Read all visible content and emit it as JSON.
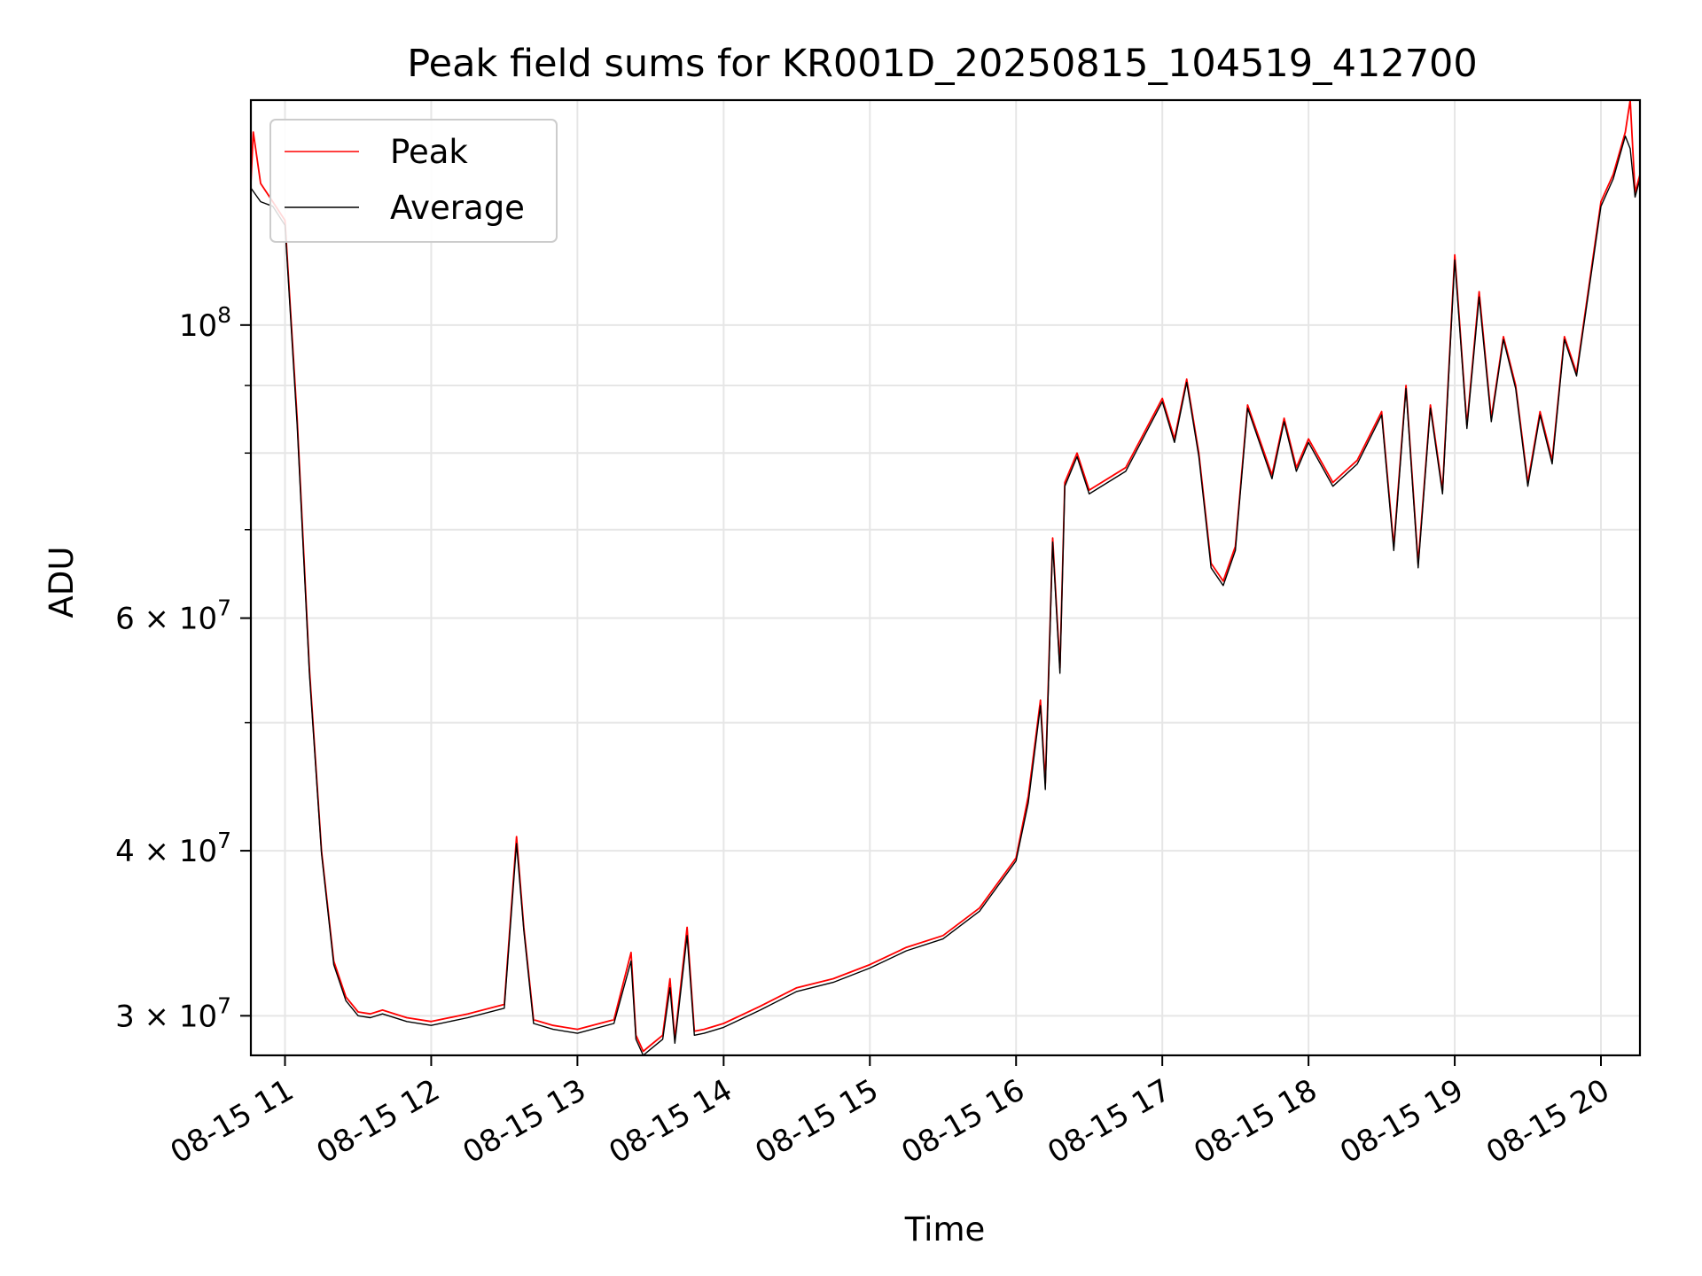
{
  "chart_data": {
    "type": "line",
    "title": "Peak field sums for KR001D_20250815_104519_412700",
    "xlabel": "Time",
    "ylabel": "ADU",
    "yscale": "log",
    "ylim": [
      28000000,
      148000000
    ],
    "xlim": [
      "2025-08-15 10:46",
      "2025-08-15 20:16"
    ],
    "x_ticks": [
      "08-15 11",
      "08-15 12",
      "08-15 13",
      "08-15 14",
      "08-15 15",
      "08-15 16",
      "08-15 17",
      "08-15 18",
      "08-15 19",
      "08-15 20"
    ],
    "x_tick_times": [
      "2025-08-15 11:00",
      "2025-08-15 12:00",
      "2025-08-15 13:00",
      "2025-08-15 14:00",
      "2025-08-15 15:00",
      "2025-08-15 16:00",
      "2025-08-15 17:00",
      "2025-08-15 18:00",
      "2025-08-15 19:00",
      "2025-08-15 20:00"
    ],
    "y_ticks": [
      {
        "value": 100000000,
        "base": "10",
        "exp": "8",
        "coef": ""
      },
      {
        "value": 60000000,
        "base": "10",
        "exp": "7",
        "coef": "6 × "
      },
      {
        "value": 40000000,
        "base": "10",
        "exp": "7",
        "coef": "4 × "
      },
      {
        "value": 30000000,
        "base": "10",
        "exp": "7",
        "coef": "3 × "
      }
    ],
    "y_minor_ticks": [
      90000000,
      80000000,
      70000000,
      50000000
    ],
    "grid": true,
    "legend_position": "top-left",
    "series": [
      {
        "name": "Peak",
        "color": "#ff0000",
        "x": [
          "2025-08-15 10:46",
          "2025-08-15 10:47",
          "2025-08-15 10:50",
          "2025-08-15 10:55",
          "2025-08-15 11:00",
          "2025-08-15 11:05",
          "2025-08-15 11:10",
          "2025-08-15 11:15",
          "2025-08-15 11:20",
          "2025-08-15 11:25",
          "2025-08-15 11:30",
          "2025-08-15 11:35",
          "2025-08-15 11:40",
          "2025-08-15 11:50",
          "2025-08-15 12:00",
          "2025-08-15 12:15",
          "2025-08-15 12:30",
          "2025-08-15 12:35",
          "2025-08-15 12:38",
          "2025-08-15 12:42",
          "2025-08-15 12:50",
          "2025-08-15 13:00",
          "2025-08-15 13:15",
          "2025-08-15 13:22",
          "2025-08-15 13:24",
          "2025-08-15 13:27",
          "2025-08-15 13:30",
          "2025-08-15 13:35",
          "2025-08-15 13:38",
          "2025-08-15 13:40",
          "2025-08-15 13:45",
          "2025-08-15 13:48",
          "2025-08-15 13:52",
          "2025-08-15 14:00",
          "2025-08-15 14:15",
          "2025-08-15 14:30",
          "2025-08-15 14:45",
          "2025-08-15 15:00",
          "2025-08-15 15:15",
          "2025-08-15 15:30",
          "2025-08-15 15:45",
          "2025-08-15 16:00",
          "2025-08-15 16:05",
          "2025-08-15 16:10",
          "2025-08-15 16:12",
          "2025-08-15 16:15",
          "2025-08-15 16:18",
          "2025-08-15 16:20",
          "2025-08-15 16:25",
          "2025-08-15 16:30",
          "2025-08-15 16:45",
          "2025-08-15 17:00",
          "2025-08-15 17:05",
          "2025-08-15 17:10",
          "2025-08-15 17:15",
          "2025-08-15 17:20",
          "2025-08-15 17:25",
          "2025-08-15 17:30",
          "2025-08-15 17:35",
          "2025-08-15 17:45",
          "2025-08-15 17:50",
          "2025-08-15 17:55",
          "2025-08-15 18:00",
          "2025-08-15 18:10",
          "2025-08-15 18:20",
          "2025-08-15 18:30",
          "2025-08-15 18:35",
          "2025-08-15 18:40",
          "2025-08-15 18:45",
          "2025-08-15 18:50",
          "2025-08-15 18:55",
          "2025-08-15 19:00",
          "2025-08-15 19:05",
          "2025-08-15 19:10",
          "2025-08-15 19:15",
          "2025-08-15 19:20",
          "2025-08-15 19:25",
          "2025-08-15 19:30",
          "2025-08-15 19:35",
          "2025-08-15 19:40",
          "2025-08-15 19:45",
          "2025-08-15 19:50",
          "2025-08-15 20:00",
          "2025-08-15 20:05",
          "2025-08-15 20:10",
          "2025-08-15 20:12",
          "2025-08-15 20:14",
          "2025-08-15 20:16"
        ],
        "y": [
          128000000,
          140000000,
          128000000,
          124000000,
          120000000,
          85000000,
          55000000,
          40000000,
          33000000,
          31000000,
          30200000,
          30100000,
          30300000,
          29900000,
          29700000,
          30100000,
          30600000,
          41000000,
          35000000,
          29800000,
          29500000,
          29300000,
          29800000,
          33500000,
          29000000,
          28200000,
          28500000,
          29000000,
          32000000,
          28800000,
          35000000,
          29200000,
          29300000,
          29600000,
          30500000,
          31500000,
          32000000,
          32800000,
          33800000,
          34500000,
          36200000,
          39500000,
          44000000,
          52000000,
          45000000,
          69000000,
          55000000,
          76000000,
          80000000,
          75000000,
          78000000,
          88000000,
          82000000,
          91000000,
          80000000,
          66000000,
          64000000,
          68000000,
          87000000,
          77000000,
          85000000,
          78000000,
          82000000,
          76000000,
          79000000,
          86000000,
          68000000,
          90000000,
          66000000,
          87000000,
          75000000,
          113000000,
          84000000,
          106000000,
          85000000,
          98000000,
          90000000,
          76000000,
          86000000,
          79000000,
          98000000,
          92000000,
          124000000,
          130000000,
          140000000,
          148000000,
          126000000,
          130000000
        ]
      },
      {
        "name": "Average",
        "color": "#000000",
        "x": [
          "2025-08-15 10:46",
          "2025-08-15 10:50",
          "2025-08-15 10:55",
          "2025-08-15 11:00",
          "2025-08-15 11:05",
          "2025-08-15 11:10",
          "2025-08-15 11:15",
          "2025-08-15 11:20",
          "2025-08-15 11:25",
          "2025-08-15 11:30",
          "2025-08-15 11:35",
          "2025-08-15 11:40",
          "2025-08-15 11:50",
          "2025-08-15 12:00",
          "2025-08-15 12:15",
          "2025-08-15 12:30",
          "2025-08-15 12:35",
          "2025-08-15 12:38",
          "2025-08-15 12:42",
          "2025-08-15 12:50",
          "2025-08-15 13:00",
          "2025-08-15 13:15",
          "2025-08-15 13:22",
          "2025-08-15 13:24",
          "2025-08-15 13:27",
          "2025-08-15 13:30",
          "2025-08-15 13:35",
          "2025-08-15 13:38",
          "2025-08-15 13:40",
          "2025-08-15 13:45",
          "2025-08-15 13:48",
          "2025-08-15 13:52",
          "2025-08-15 14:00",
          "2025-08-15 14:15",
          "2025-08-15 14:30",
          "2025-08-15 14:45",
          "2025-08-15 15:00",
          "2025-08-15 15:15",
          "2025-08-15 15:30",
          "2025-08-15 15:45",
          "2025-08-15 16:00",
          "2025-08-15 16:05",
          "2025-08-15 16:10",
          "2025-08-15 16:12",
          "2025-08-15 16:15",
          "2025-08-15 16:18",
          "2025-08-15 16:20",
          "2025-08-15 16:25",
          "2025-08-15 16:30",
          "2025-08-15 16:45",
          "2025-08-15 17:00",
          "2025-08-15 17:05",
          "2025-08-15 17:10",
          "2025-08-15 17:15",
          "2025-08-15 17:20",
          "2025-08-15 17:25",
          "2025-08-15 17:30",
          "2025-08-15 17:35",
          "2025-08-15 17:45",
          "2025-08-15 17:50",
          "2025-08-15 17:55",
          "2025-08-15 18:00",
          "2025-08-15 18:10",
          "2025-08-15 18:20",
          "2025-08-15 18:30",
          "2025-08-15 18:35",
          "2025-08-15 18:40",
          "2025-08-15 18:45",
          "2025-08-15 18:50",
          "2025-08-15 18:55",
          "2025-08-15 19:00",
          "2025-08-15 19:05",
          "2025-08-15 19:10",
          "2025-08-15 19:15",
          "2025-08-15 19:20",
          "2025-08-15 19:25",
          "2025-08-15 19:30",
          "2025-08-15 19:35",
          "2025-08-15 19:40",
          "2025-08-15 19:45",
          "2025-08-15 19:50",
          "2025-08-15 20:00",
          "2025-08-15 20:05",
          "2025-08-15 20:10",
          "2025-08-15 20:12",
          "2025-08-15 20:14",
          "2025-08-15 20:16"
        ],
        "y": [
          127000000,
          124000000,
          123000000,
          119000000,
          84000000,
          54500000,
          39800000,
          32800000,
          30800000,
          30000000,
          29900000,
          30100000,
          29700000,
          29500000,
          29900000,
          30400000,
          40500000,
          34800000,
          29600000,
          29300000,
          29100000,
          29600000,
          33000000,
          28800000,
          28000000,
          28300000,
          28800000,
          31500000,
          28600000,
          34500000,
          29000000,
          29100000,
          29400000,
          30300000,
          31300000,
          31800000,
          32600000,
          33600000,
          34300000,
          36000000,
          39300000,
          43500000,
          51500000,
          44500000,
          68500000,
          54500000,
          75500000,
          79500000,
          74500000,
          77500000,
          87500000,
          81500000,
          90500000,
          79500000,
          65500000,
          63500000,
          67500000,
          86500000,
          76500000,
          84500000,
          77500000,
          81500000,
          75500000,
          78500000,
          85500000,
          67500000,
          89500000,
          65500000,
          86500000,
          74500000,
          112000000,
          83500000,
          105000000,
          84500000,
          97500000,
          89500000,
          75500000,
          85500000,
          78500000,
          97500000,
          91500000,
          123000000,
          129000000,
          139000000,
          136000000,
          125000000,
          129000000
        ]
      }
    ]
  }
}
